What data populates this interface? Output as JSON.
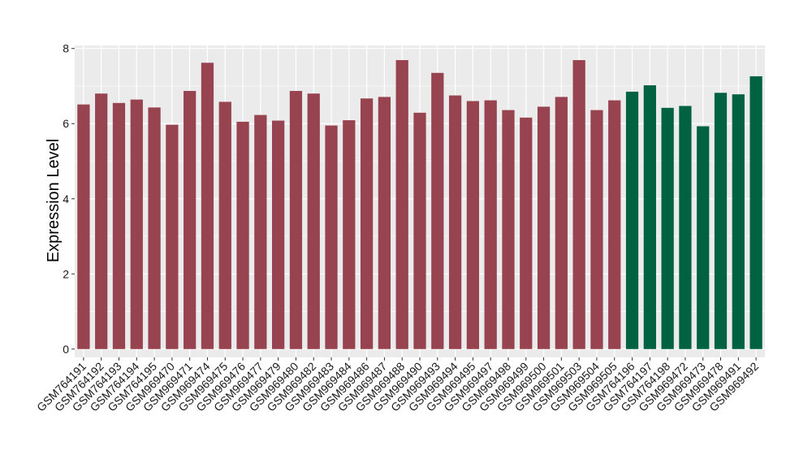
{
  "chart_data": {
    "type": "bar",
    "title": "",
    "xlabel": "",
    "ylabel": "Expression Level",
    "ylim": [
      -0.22,
      8.08
    ],
    "yticks": [
      0,
      2,
      4,
      6,
      8
    ],
    "grid": true,
    "legend": "none",
    "colors": {
      "panel_background": "#ebebeb",
      "grid": "#ffffff",
      "group_a": "#974350",
      "group_b": "#006241"
    },
    "categories": [
      "GSM764191",
      "GSM764192",
      "GSM764193",
      "GSM764194",
      "GSM764195",
      "GSM969470",
      "GSM969471",
      "GSM969474",
      "GSM969475",
      "GSM969476",
      "GSM969477",
      "GSM969479",
      "GSM969480",
      "GSM969482",
      "GSM969483",
      "GSM969484",
      "GSM969486",
      "GSM969487",
      "GSM969488",
      "GSM969490",
      "GSM969493",
      "GSM969494",
      "GSM969495",
      "GSM969497",
      "GSM969498",
      "GSM969499",
      "GSM969500",
      "GSM969501",
      "GSM969503",
      "GSM969504",
      "GSM969505",
      "GSM764196",
      "GSM764197",
      "GSM764198",
      "GSM969472",
      "GSM969473",
      "GSM969478",
      "GSM969491",
      "GSM969492"
    ],
    "values": [
      6.51,
      6.8,
      6.55,
      6.64,
      6.43,
      5.97,
      6.87,
      7.62,
      6.58,
      6.05,
      6.23,
      6.08,
      6.87,
      6.8,
      5.95,
      6.09,
      6.67,
      6.71,
      7.69,
      6.29,
      7.35,
      6.75,
      6.6,
      6.62,
      6.36,
      6.16,
      6.45,
      6.71,
      7.69,
      6.36,
      6.62,
      6.85,
      7.02,
      6.42,
      6.47,
      5.93,
      6.82,
      6.78,
      7.26
    ],
    "groups": [
      "a",
      "a",
      "a",
      "a",
      "a",
      "a",
      "a",
      "a",
      "a",
      "a",
      "a",
      "a",
      "a",
      "a",
      "a",
      "a",
      "a",
      "a",
      "a",
      "a",
      "a",
      "a",
      "a",
      "a",
      "a",
      "a",
      "a",
      "a",
      "a",
      "a",
      "a",
      "b",
      "b",
      "b",
      "b",
      "b",
      "b",
      "b",
      "b"
    ]
  }
}
